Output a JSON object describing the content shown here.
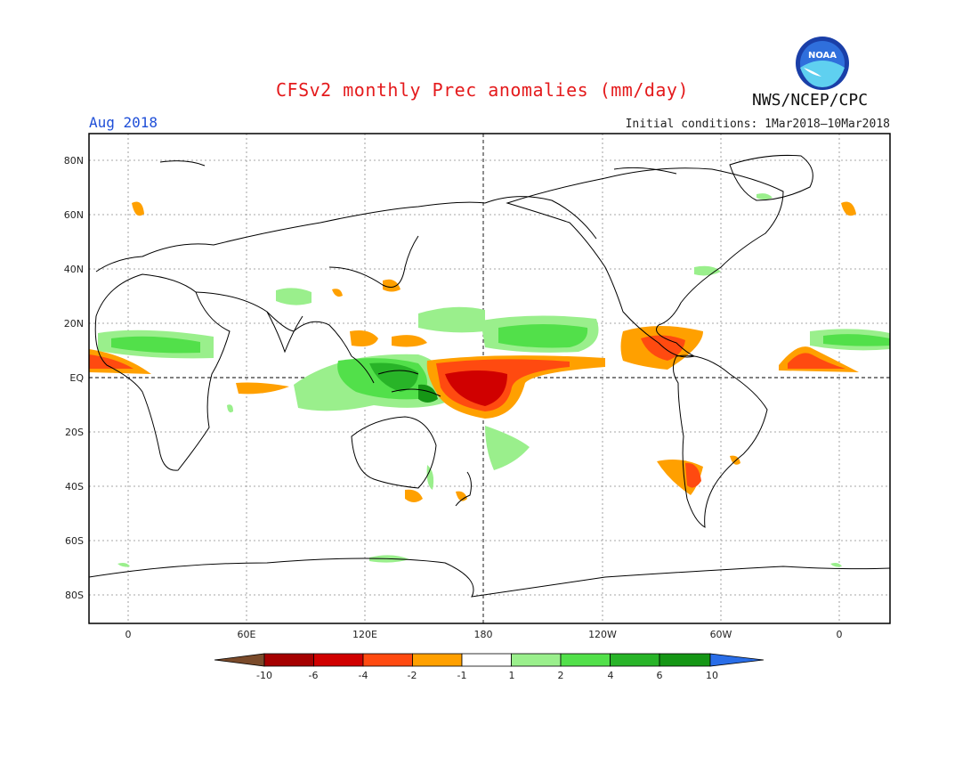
{
  "title": "CFSv2 monthly Prec anomalies (mm/day)",
  "period": "Aug 2018",
  "initial_conditions": "Initial conditions: 1Mar2018–10Mar2018",
  "agency": "NWS/NCEP/CPC",
  "logo_text": "NOAA",
  "axes": {
    "lat_labels": [
      "80N",
      "60N",
      "40N",
      "20N",
      "EQ",
      "20S",
      "40S",
      "60S",
      "80S"
    ],
    "lon_labels": [
      "0",
      "60E",
      "120E",
      "180",
      "120W",
      "60W",
      "0"
    ]
  },
  "colorbar": {
    "labels": [
      "-10",
      "-6",
      "-4",
      "-2",
      "-1",
      "1",
      "2",
      "4",
      "6",
      "10"
    ],
    "colors": [
      "#7a4a2a",
      "#a50000",
      "#d00000",
      "#ff4a10",
      "#ffa000",
      "#ffffff",
      "#9aef8c",
      "#52e04a",
      "#28b428",
      "#159615",
      "#2a6ee8"
    ]
  },
  "colors": {
    "land_outline": "#000000",
    "grid": "#888888",
    "neg_strong": "#d00000",
    "neg_mid": "#ff4a10",
    "neg_light": "#ffa000",
    "pos_light": "#9aef8c",
    "pos_mid": "#52e04a",
    "pos_strong": "#159615"
  }
}
